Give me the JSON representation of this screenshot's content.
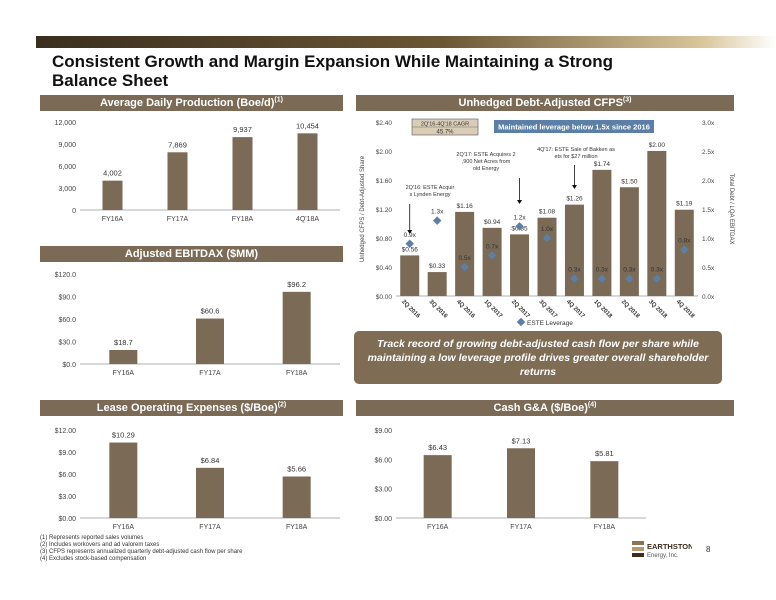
{
  "title": "Consistent Growth and Margin Expansion While Maintaining a Strong Balance Sheet",
  "page_number": "8",
  "logo": {
    "name": "EARTHSTONE",
    "sub": "Energy, Inc."
  },
  "callout": "Track record of growing debt-adjusted cash flow per share while maintaining a low leverage profile drives greater overall shareholder returns",
  "footnotes": [
    "(1)   Represents reported sales volumes",
    "(2)   Includes workovers and ad valorem taxes",
    "(3)   CFPS represents annualized quarterly debt-adjusted cash flow per share",
    "(4)   Excludes stock-based compensation"
  ],
  "colors": {
    "bar": "#7a6a56",
    "header": "#7a6a56",
    "marker": "#5b7fa6",
    "label_box": "#d9cdb8"
  },
  "chart_data": [
    {
      "type": "bar",
      "title": "Average Daily Production (Boe/d)",
      "title_sup": "(1)",
      "categories": [
        "FY16A",
        "FY17A",
        "FY18A",
        "4Q'18A"
      ],
      "values": [
        4002,
        7869,
        9937,
        10454
      ],
      "value_labels": [
        "4,002",
        "7,869",
        "9,937",
        "10,454"
      ],
      "ylim": [
        0,
        12000
      ],
      "yticks": [
        "0",
        "3,000",
        "6,000",
        "9,000",
        "12,000"
      ]
    },
    {
      "type": "bar",
      "title": "Adjusted EBITDAX ($MM)",
      "title_sup": "",
      "categories": [
        "FY16A",
        "FY17A",
        "FY18A"
      ],
      "values": [
        18.7,
        60.6,
        96.2
      ],
      "value_labels": [
        "$18.7",
        "$60.6",
        "$96.2"
      ],
      "ylim": [
        0,
        120
      ],
      "yticks": [
        "$0.0",
        "$30.0",
        "$60.0",
        "$90.0",
        "$120.0"
      ]
    },
    {
      "type": "bar",
      "title": "Unhedged Debt-Adjusted CFPS",
      "title_sup": "(3)",
      "categories": [
        "2Q 2016",
        "3Q 2016",
        "4Q 2016",
        "1Q 2017",
        "2Q 2017",
        "3Q 2017",
        "4Q 2017",
        "1Q 2018",
        "2Q 2018",
        "3Q 2018",
        "4Q 2018"
      ],
      "values": [
        0.56,
        0.33,
        1.16,
        0.94,
        0.85,
        1.08,
        1.26,
        1.74,
        1.5,
        2.0,
        1.19
      ],
      "value_labels": [
        "$0.56",
        "$0.33",
        "$1.16",
        "$0.94",
        "$0.85",
        "$1.08",
        "$1.26",
        "$1.74",
        "$1.50",
        "$2.00",
        "$1.19"
      ],
      "ylim": [
        0,
        2.4
      ],
      "yticks": [
        "$0.00",
        "$0.40",
        "$0.80",
        "$1.20",
        "$1.60",
        "$2.00",
        "$2.40"
      ],
      "ylabel": "Unhedged CFPS / Debt-Adjusted Share",
      "y2label": "Total Debt / LQA EBITDAX",
      "y2lim": [
        0,
        3.0
      ],
      "y2ticks": [
        "0.0x",
        "0.5x",
        "1.0x",
        "1.5x",
        "2.0x",
        "2.5x",
        "3.0x"
      ],
      "series2": {
        "name": "ESTE Leverage",
        "values": [
          0.9,
          1.3,
          0.5,
          0.7,
          1.2,
          1.0,
          0.3,
          0.3,
          0.3,
          0.3,
          0.8
        ],
        "labels": [
          "0.9x",
          "1.3x",
          "0.5x",
          "0.7x",
          "1.2x",
          "1.0x",
          "0.3x",
          "0.3x",
          "0.3x",
          "0.3x",
          "0.8x"
        ]
      },
      "cagr": {
        "label": "2Q'16-4Q'18 CAGR",
        "value": "45.7%"
      },
      "banner": "Maintained leverage below 1.5x since 2016",
      "annotations": [
        "2Q'16: ESTE Acquires Lynden Energy",
        "2Q'17: ESTE Acquires 20,900 Net Acres from Bold Energy",
        "4Q'17: ESTE Sale of Bakken assets for $27 million"
      ]
    },
    {
      "type": "bar",
      "title": "Lease Operating Expenses ($/Boe)",
      "title_sup": "(2)",
      "categories": [
        "FY16A",
        "FY17A",
        "FY18A"
      ],
      "values": [
        10.29,
        6.84,
        5.66
      ],
      "value_labels": [
        "$10.29",
        "$6.84",
        "$5.66"
      ],
      "ylim": [
        0,
        12
      ],
      "yticks": [
        "$0.00",
        "$3.00",
        "$6.00",
        "$9.00",
        "$12.00"
      ]
    },
    {
      "type": "bar",
      "title": "Cash G&A ($/Boe)",
      "title_sup": "(4)",
      "categories": [
        "FY16A",
        "FY17A",
        "FY18A"
      ],
      "values": [
        6.43,
        7.13,
        5.81
      ],
      "value_labels": [
        "$6.43",
        "$7.13",
        "$5.81"
      ],
      "ylim": [
        0,
        9
      ],
      "yticks": [
        "$0.00",
        "$3.00",
        "$6.00",
        "$9.00"
      ]
    }
  ]
}
